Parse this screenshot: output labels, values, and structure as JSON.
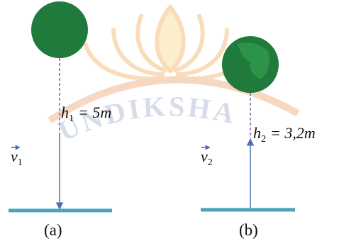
{
  "watermark": "UNDIKSHA",
  "labels": {
    "h1": {
      "symbol": "h",
      "subscript": "1",
      "rest": "= 5m"
    },
    "v1": {
      "symbol": "v",
      "subscript": "1"
    },
    "h2": {
      "symbol": "h",
      "subscript": "2",
      "rest": "= 3,2m"
    },
    "v2": {
      "symbol": "v",
      "subscript": "2"
    }
  },
  "captions": {
    "a": "(a)",
    "b": "(b)"
  }
}
